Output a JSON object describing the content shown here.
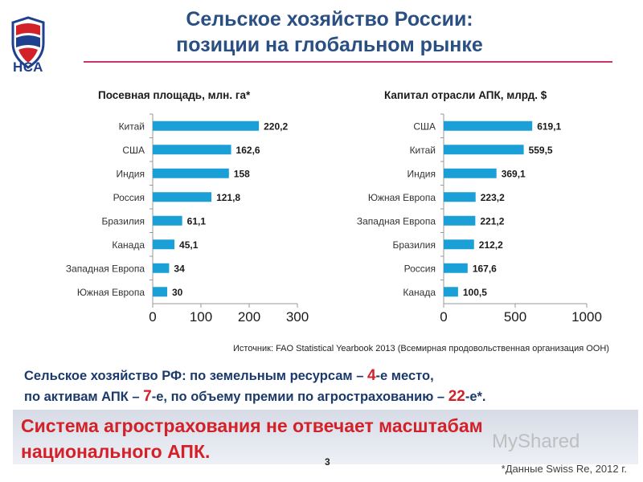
{
  "header": {
    "logo_text": "НСА",
    "title_line1": "Сельское хозяйство России:",
    "title_line2": "позиции на глобальном рынке"
  },
  "colors": {
    "bar": "#1aa0d7",
    "title": "#2a4f82",
    "accent_red": "#d22128",
    "rule": "#c8326e"
  },
  "chart_data": [
    {
      "type": "bar",
      "orientation": "horizontal",
      "title": "Посевная площадь, млн. га*",
      "categories": [
        "Китай",
        "США",
        "Индия",
        "Россия",
        "Бразилия",
        "Канада",
        "Западная Европа",
        "Южная Европа"
      ],
      "values": [
        220.2,
        162.6,
        158,
        121.8,
        61.1,
        45.1,
        34,
        30
      ],
      "value_labels": [
        "220,2",
        "162,6",
        "158",
        "121,8",
        "61,1",
        "45,1",
        "34",
        "30"
      ],
      "xlim": [
        0,
        300
      ],
      "ticks": [
        0,
        100,
        200,
        300
      ],
      "tick_labels": [
        "0",
        "100",
        "200",
        "300"
      ],
      "grid": false,
      "legend": "none"
    },
    {
      "type": "bar",
      "orientation": "horizontal",
      "title": "Капитал отрасли АПК, млрд. $",
      "categories": [
        "США",
        "Китай",
        "Индия",
        "Южная Европа",
        "Западная Европа",
        "Бразилия",
        "Россия",
        "Канада"
      ],
      "values": [
        619.1,
        559.5,
        369.1,
        223.2,
        221.2,
        212.2,
        167.6,
        100.5
      ],
      "value_labels": [
        "619,1",
        "559,5",
        "369,1",
        "223,2",
        "221,2",
        "212,2",
        "167,6",
        "100,5"
      ],
      "xlim": [
        0,
        1000
      ],
      "ticks": [
        0,
        500,
        1000
      ],
      "tick_labels": [
        "0",
        "500",
        "1000"
      ],
      "grid": false,
      "legend": "none"
    }
  ],
  "source": "Источник: FAO Statistical Yearbook 2013 (Всемирная продовольственная организация ООН)",
  "summary": {
    "line1_a": "Сельское хозяйство РФ: по земельным ресурсам – ",
    "line1_rank_num": "4",
    "line1_rank_suffix": "-е",
    "line1_b": " место,",
    "line2_a": "по активам АПК – ",
    "line2_rank_num": "7",
    "line2_rank_suffix": "-е",
    "line2_b": ", по объему премии по агрострахованию – ",
    "line2_rank2_num": "22",
    "line2_rank2_suffix": "-е",
    "line2_c": "*."
  },
  "conclusion": {
    "line1": "Система агрострахования не отвечает масштабам",
    "line2": "национального АПК."
  },
  "page_number": "3",
  "footnote": "*Данные Swiss Re, 2012 г.",
  "watermark": "MyShared"
}
